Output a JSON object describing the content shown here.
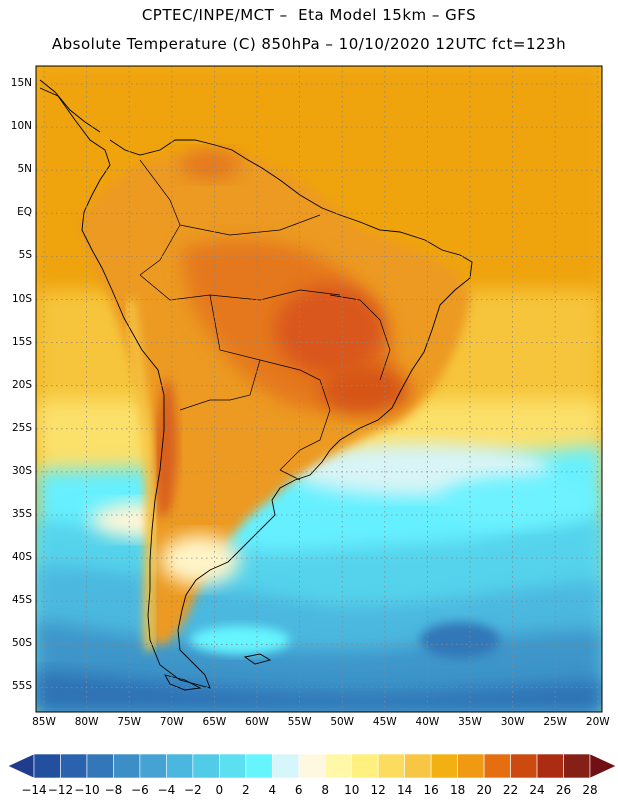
{
  "header": {
    "title_line1": "CPTEC/INPE/MCT –  Eta Model 15km – GFS",
    "title_line2": "Absolute Temperature (C) 850hPa – 10/10/2020 12UTC fct=123h"
  },
  "map": {
    "lat_labels": [
      "15N",
      "10N",
      "5N",
      "EQ",
      "5S",
      "10S",
      "15S",
      "20S",
      "25S",
      "30S",
      "35S",
      "40S",
      "45S",
      "50S",
      "55S"
    ],
    "lon_labels": [
      "85W",
      "80W",
      "75W",
      "70W",
      "65W",
      "60W",
      "55W",
      "50W",
      "45W",
      "40W",
      "35W",
      "30W",
      "25W",
      "20W"
    ],
    "grid_style": "dotted"
  },
  "colorbar": {
    "labels": [
      "-14",
      "-12",
      "-10",
      "-8",
      "-6",
      "-4",
      "-2",
      "0",
      "2",
      "4",
      "6",
      "8",
      "10",
      "12",
      "14",
      "16",
      "18",
      "20",
      "22",
      "24",
      "26",
      "28"
    ],
    "colors": [
      "#1f3d8c",
      "#23509e",
      "#2b62ad",
      "#3377b8",
      "#3c8ec6",
      "#46a2d2",
      "#4bb6de",
      "#52cce6",
      "#5cdff0",
      "#66f5ff",
      "#d5f6fb",
      "#fff8e0",
      "#fff8a8",
      "#fff080",
      "#fbdc5e",
      "#f7c645",
      "#f3b012",
      "#ef9a12",
      "#e46e10",
      "#cc4a10",
      "#ab2c12",
      "#862016",
      "#6f1014"
    ]
  }
}
